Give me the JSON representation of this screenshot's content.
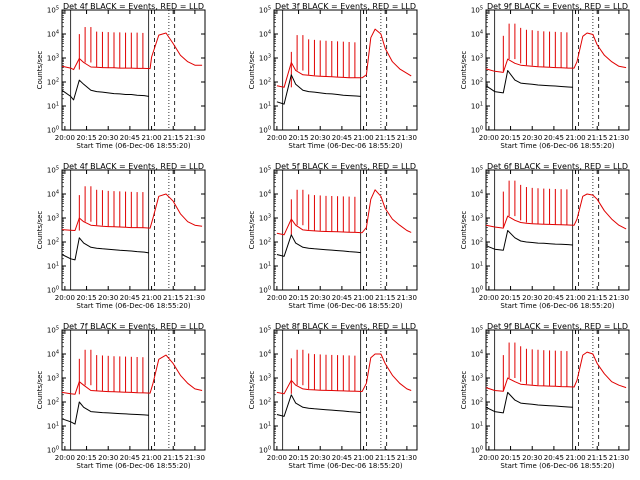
{
  "figure": {
    "colors": {
      "events": "#000000",
      "lld": "#e00000",
      "axes": "#000000",
      "background": "#ffffff"
    }
  },
  "chart_data": [
    {
      "type": "line",
      "title": "Det 4f BLACK = Events, RED = LLD",
      "xlabel": "Start Time (06-Dec-06 18:55:20)",
      "ylabel": "Counts/sec",
      "yscale": "log",
      "ylim": [
        1,
        100000
      ],
      "xticks": [
        "20:00",
        "20:15",
        "20:30",
        "20:45",
        "21:00",
        "21:15",
        "21:30"
      ],
      "yticks": [
        "10^0",
        "10^1",
        "10^2",
        "10^3",
        "10^4",
        "10^5"
      ],
      "series": [
        {
          "x": [
            "19:58",
            "20:04",
            "20:06",
            "20:10",
            "20:13",
            "20:18",
            "20:22",
            "20:26",
            "20:30",
            "20:34",
            "20:38",
            "20:42",
            "20:46",
            "20:50",
            "20:55",
            "20:59",
            "21:00",
            "21:05",
            "21:10",
            "21:15",
            "21:20",
            "21:25",
            "21:30",
            "21:35"
          ],
          "y": [
            450,
            380,
            330,
            950,
            650,
            420,
            410,
            400,
            390,
            390,
            380,
            380,
            380,
            370,
            370,
            360,
            1100,
            9000,
            11000,
            4000,
            1300,
            700,
            500,
            500
          ]
        },
        {
          "x": [
            "19:58",
            "20:04",
            "20:06",
            "20:10",
            "20:13",
            "20:18",
            "20:22",
            "20:26",
            "20:30",
            "20:34",
            "20:38",
            "20:42",
            "20:46",
            "20:50",
            "20:55",
            "20:58"
          ],
          "y": [
            45,
            25,
            18,
            120,
            80,
            45,
            40,
            38,
            35,
            33,
            32,
            30,
            30,
            28,
            27,
            25
          ]
        }
      ]
    },
    {
      "type": "line",
      "title": "Det 3f BLACK = Events, RED = LLD",
      "xlabel": "Start Time (06-Dec-06 18:55:20)",
      "ylabel": "Counts/sec",
      "yscale": "log",
      "ylim": [
        1,
        100000
      ],
      "xticks": [
        "20:00",
        "20:15",
        "20:30",
        "20:45",
        "21:00",
        "21:15",
        "21:30"
      ],
      "yticks": [
        "10^0",
        "10^1",
        "10^2",
        "10^3",
        "10^4",
        "10^5"
      ],
      "series": [
        {
          "x": [
            "20:00",
            "20:05",
            "20:10",
            "20:13",
            "20:18",
            "20:22",
            "20:26",
            "20:30",
            "20:34",
            "20:38",
            "20:42",
            "20:46",
            "20:50",
            "20:55",
            "20:59",
            "21:02",
            "21:05",
            "21:08",
            "21:12",
            "21:15",
            "21:20",
            "21:25",
            "21:30",
            "21:33"
          ],
          "y": [
            70,
            60,
            650,
            300,
            200,
            190,
            180,
            175,
            170,
            165,
            160,
            155,
            150,
            150,
            150,
            200,
            7000,
            16000,
            10000,
            2500,
            700,
            350,
            230,
            180
          ]
        },
        {
          "x": [
            "20:00",
            "20:05",
            "20:10",
            "20:13",
            "20:18",
            "20:22",
            "20:26",
            "20:30",
            "20:34",
            "20:38",
            "20:42",
            "20:46",
            "20:50",
            "20:55",
            "20:58"
          ],
          "y": [
            15,
            12,
            200,
            80,
            45,
            40,
            38,
            35,
            33,
            32,
            30,
            28,
            27,
            26,
            25
          ]
        }
      ]
    },
    {
      "type": "line",
      "title": "Det 9f BLACK = Events, RED = LLD",
      "xlabel": "Start Time (06-Dec-06 18:55:20)",
      "ylabel": "Counts/sec",
      "yscale": "log",
      "ylim": [
        1,
        100000
      ],
      "xticks": [
        "20:00",
        "20:15",
        "20:30",
        "20:45",
        "21:00",
        "21:15",
        "21:30"
      ],
      "yticks": [
        "10^0",
        "10^1",
        "10^2",
        "10^3",
        "10^4",
        "10^5"
      ],
      "series": [
        {
          "x": [
            "19:58",
            "20:04",
            "20:10",
            "20:13",
            "20:18",
            "20:22",
            "20:26",
            "20:30",
            "20:34",
            "20:38",
            "20:42",
            "20:46",
            "20:50",
            "20:55",
            "20:59",
            "21:01",
            "21:05",
            "21:08",
            "21:12",
            "21:15",
            "21:20",
            "21:25",
            "21:30",
            "21:35"
          ],
          "y": [
            350,
            280,
            250,
            900,
            600,
            500,
            480,
            450,
            430,
            420,
            410,
            400,
            390,
            380,
            380,
            700,
            8000,
            11000,
            9500,
            3500,
            1300,
            700,
            450,
            400
          ]
        },
        {
          "x": [
            "19:58",
            "20:04",
            "20:10",
            "20:13",
            "20:18",
            "20:22",
            "20:26",
            "20:30",
            "20:34",
            "20:38",
            "20:42",
            "20:46",
            "20:50",
            "20:55",
            "20:58"
          ],
          "y": [
            70,
            40,
            35,
            300,
            120,
            90,
            85,
            80,
            75,
            72,
            70,
            68,
            65,
            62,
            60
          ]
        }
      ]
    },
    {
      "type": "line",
      "title": "Det 4f BLACK = Events, RED = LLD",
      "xlabel": "Start Time (06-Dec-06 18:55:20)",
      "ylabel": "Counts/sec",
      "yscale": "log",
      "ylim": [
        1,
        100000
      ],
      "xticks": [
        "20:00",
        "20:15",
        "20:30",
        "20:45",
        "21:00",
        "21:15",
        "21:30"
      ],
      "yticks": [
        "10^0",
        "10^1",
        "10^2",
        "10^3",
        "10^4",
        "10^5"
      ],
      "series": [
        {
          "x": [
            "19:58",
            "20:04",
            "20:07",
            "20:10",
            "20:13",
            "20:18",
            "20:22",
            "20:26",
            "20:30",
            "20:34",
            "20:38",
            "20:42",
            "20:46",
            "20:50",
            "20:55",
            "20:59",
            "21:01",
            "21:05",
            "21:10",
            "21:15",
            "21:20",
            "21:25",
            "21:30",
            "21:35"
          ],
          "y": [
            330,
            310,
            300,
            1000,
            700,
            500,
            480,
            450,
            440,
            430,
            420,
            410,
            400,
            400,
            390,
            380,
            1000,
            8000,
            10000,
            5000,
            1500,
            700,
            500,
            450
          ]
        },
        {
          "x": [
            "19:58",
            "20:04",
            "20:07",
            "20:10",
            "20:13",
            "20:18",
            "20:22",
            "20:26",
            "20:30",
            "20:34",
            "20:38",
            "20:42",
            "20:46",
            "20:50",
            "20:55",
            "20:58"
          ],
          "y": [
            30,
            20,
            18,
            150,
            90,
            60,
            55,
            52,
            50,
            48,
            45,
            44,
            42,
            40,
            38,
            35
          ]
        }
      ]
    },
    {
      "type": "line",
      "title": "Det 5f BLACK = Events, RED = LLD",
      "xlabel": "Start Time (06-Dec-06 18:55:20)",
      "ylabel": "Counts/sec",
      "yscale": "log",
      "ylim": [
        1,
        100000
      ],
      "xticks": [
        "20:00",
        "20:15",
        "20:30",
        "20:45",
        "21:00",
        "21:15",
        "21:30"
      ],
      "yticks": [
        "10^0",
        "10^1",
        "10^2",
        "10^3",
        "10^4",
        "10^5"
      ],
      "series": [
        {
          "x": [
            "20:00",
            "20:05",
            "20:10",
            "20:13",
            "20:18",
            "20:22",
            "20:26",
            "20:30",
            "20:34",
            "20:38",
            "20:42",
            "20:46",
            "20:50",
            "20:55",
            "20:59",
            "21:02",
            "21:05",
            "21:08",
            "21:12",
            "21:15",
            "21:20",
            "21:25",
            "21:30",
            "21:33"
          ],
          "y": [
            230,
            200,
            900,
            500,
            320,
            300,
            290,
            280,
            275,
            270,
            265,
            260,
            255,
            250,
            245,
            400,
            6000,
            15000,
            8000,
            2500,
            900,
            500,
            300,
            250
          ]
        },
        {
          "x": [
            "20:00",
            "20:05",
            "20:10",
            "20:13",
            "20:18",
            "20:22",
            "20:26",
            "20:30",
            "20:34",
            "20:38",
            "20:42",
            "20:46",
            "20:50",
            "20:55",
            "20:58"
          ],
          "y": [
            30,
            25,
            200,
            90,
            60,
            55,
            52,
            50,
            48,
            46,
            44,
            42,
            40,
            38,
            36
          ]
        }
      ]
    },
    {
      "type": "line",
      "title": "Det 6f BLACK = Events, RED = LLD",
      "xlabel": "Start Time (06-Dec-06 18:55:20)",
      "ylabel": "Counts/sec",
      "yscale": "log",
      "ylim": [
        1,
        100000
      ],
      "xticks": [
        "20:00",
        "20:15",
        "20:30",
        "20:45",
        "21:00",
        "21:15",
        "21:30"
      ],
      "yticks": [
        "10^0",
        "10^1",
        "10^2",
        "10^3",
        "10^4",
        "10^5"
      ],
      "series": [
        {
          "x": [
            "19:58",
            "20:04",
            "20:10",
            "20:13",
            "20:18",
            "20:22",
            "20:26",
            "20:30",
            "20:34",
            "20:38",
            "20:42",
            "20:46",
            "20:50",
            "20:55",
            "20:59",
            "21:01",
            "21:05",
            "21:08",
            "21:12",
            "21:15",
            "21:20",
            "21:25",
            "21:30",
            "21:35"
          ],
          "y": [
            500,
            420,
            380,
            1200,
            800,
            650,
            600,
            580,
            560,
            550,
            540,
            530,
            520,
            510,
            500,
            900,
            8000,
            10000,
            9000,
            6000,
            2000,
            900,
            500,
            350
          ]
        },
        {
          "x": [
            "19:58",
            "20:04",
            "20:10",
            "20:13",
            "20:18",
            "20:22",
            "20:26",
            "20:30",
            "20:34",
            "20:38",
            "20:42",
            "20:46",
            "20:50",
            "20:55",
            "20:58"
          ],
          "y": [
            70,
            50,
            45,
            300,
            150,
            110,
            100,
            95,
            90,
            88,
            85,
            82,
            80,
            78,
            75
          ]
        }
      ]
    },
    {
      "type": "line",
      "title": "Det 7f BLACK = Events, RED = LLD",
      "xlabel": "Start Time (06-Dec-06 18:55:20)",
      "ylabel": "Counts/sec",
      "yscale": "log",
      "ylim": [
        1,
        100000
      ],
      "xticks": [
        "20:00",
        "20:15",
        "20:30",
        "20:45",
        "21:00",
        "21:15",
        "21:30"
      ],
      "yticks": [
        "10^0",
        "10^1",
        "10^2",
        "10^3",
        "10^4",
        "10^5"
      ],
      "series": [
        {
          "x": [
            "19:58",
            "20:04",
            "20:07",
            "20:10",
            "20:13",
            "20:18",
            "20:22",
            "20:26",
            "20:30",
            "20:34",
            "20:38",
            "20:42",
            "20:46",
            "20:50",
            "20:55",
            "20:59",
            "21:01",
            "21:05",
            "21:10",
            "21:15",
            "21:20",
            "21:25",
            "21:30",
            "21:35"
          ],
          "y": [
            250,
            220,
            210,
            700,
            500,
            300,
            290,
            280,
            270,
            265,
            260,
            255,
            250,
            245,
            240,
            235,
            600,
            6000,
            9000,
            4000,
            1300,
            600,
            350,
            300
          ]
        },
        {
          "x": [
            "19:58",
            "20:04",
            "20:07",
            "20:10",
            "20:13",
            "20:18",
            "20:22",
            "20:26",
            "20:30",
            "20:34",
            "20:38",
            "20:42",
            "20:46",
            "20:50",
            "20:55",
            "20:58"
          ],
          "y": [
            20,
            15,
            12,
            100,
            60,
            40,
            38,
            36,
            35,
            34,
            33,
            32,
            31,
            30,
            29,
            28
          ]
        }
      ]
    },
    {
      "type": "line",
      "title": "Det 8f BLACK = Events, RED = LLD",
      "xlabel": "Start Time (06-Dec-06 18:55:20)",
      "ylabel": "Counts/sec",
      "yscale": "log",
      "ylim": [
        1,
        100000
      ],
      "xticks": [
        "20:00",
        "20:15",
        "20:30",
        "20:45",
        "21:00",
        "21:15",
        "21:30"
      ],
      "yticks": [
        "10^0",
        "10^1",
        "10^2",
        "10^3",
        "10^4",
        "10^5"
      ],
      "series": [
        {
          "x": [
            "20:00",
            "20:05",
            "20:10",
            "20:13",
            "20:18",
            "20:22",
            "20:26",
            "20:30",
            "20:34",
            "20:38",
            "20:42",
            "20:46",
            "20:50",
            "20:55",
            "20:59",
            "21:02",
            "21:05",
            "21:08",
            "21:12",
            "21:15",
            "21:20",
            "21:25",
            "21:30",
            "21:33"
          ],
          "y": [
            250,
            220,
            800,
            500,
            350,
            330,
            320,
            310,
            305,
            300,
            295,
            290,
            285,
            280,
            275,
            600,
            7000,
            10000,
            10000,
            4000,
            1300,
            600,
            350,
            300
          ]
        },
        {
          "x": [
            "20:00",
            "20:05",
            "20:10",
            "20:13",
            "20:18",
            "20:22",
            "20:26",
            "20:30",
            "20:34",
            "20:38",
            "20:42",
            "20:46",
            "20:50",
            "20:55",
            "20:58"
          ],
          "y": [
            30,
            25,
            200,
            90,
            60,
            55,
            52,
            50,
            48,
            46,
            44,
            42,
            40,
            38,
            36
          ]
        }
      ]
    },
    {
      "type": "line",
      "title": "Det 9f BLACK = Events, RED = LLD",
      "xlabel": "Start Time (06-Dec-06 18:55:20)",
      "ylabel": "Counts/sec",
      "yscale": "log",
      "ylim": [
        1,
        100000
      ],
      "xticks": [
        "20:00",
        "20:15",
        "20:30",
        "20:45",
        "21:00",
        "21:15",
        "21:30"
      ],
      "yticks": [
        "10^0",
        "10^1",
        "10^2",
        "10^3",
        "10^4",
        "10^5"
      ],
      "series": [
        {
          "x": [
            "19:58",
            "20:04",
            "20:10",
            "20:13",
            "20:18",
            "20:22",
            "20:26",
            "20:30",
            "20:34",
            "20:38",
            "20:42",
            "20:46",
            "20:50",
            "20:55",
            "20:59",
            "21:01",
            "21:05",
            "21:08",
            "21:12",
            "21:15",
            "21:20",
            "21:25",
            "21:30",
            "21:35"
          ],
          "y": [
            400,
            300,
            280,
            1000,
            700,
            550,
            520,
            500,
            480,
            470,
            460,
            450,
            440,
            430,
            420,
            800,
            9000,
            12000,
            10000,
            4000,
            1500,
            700,
            500,
            400
          ]
        },
        {
          "x": [
            "19:58",
            "20:04",
            "20:10",
            "20:13",
            "20:18",
            "20:22",
            "20:26",
            "20:30",
            "20:34",
            "20:38",
            "20:42",
            "20:46",
            "20:50",
            "20:55",
            "20:58"
          ],
          "y": [
            60,
            40,
            35,
            250,
            120,
            90,
            85,
            80,
            75,
            72,
            70,
            68,
            65,
            62,
            60
          ]
        }
      ]
    }
  ]
}
